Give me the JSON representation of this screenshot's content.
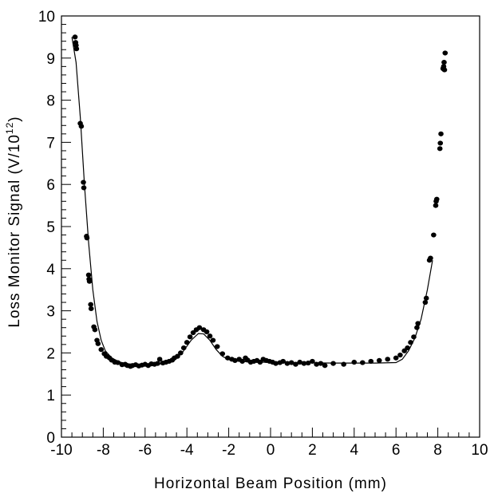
{
  "chart_data": {
    "type": "scatter",
    "title": "",
    "xlabel": "Horizontal Beam Position (mm)",
    "ylabel": "Loss Monitor Signal (V/10",
    "ylabel_superscript": "12",
    "ylabel_suffix": ")",
    "xlim": [
      -10,
      10
    ],
    "ylim": [
      0,
      10
    ],
    "x_ticks": [
      "-10",
      "-8",
      "-6",
      "-4",
      "-2",
      "0",
      "2",
      "4",
      "6",
      "8",
      "10"
    ],
    "y_ticks": [
      "0",
      "1",
      "2",
      "3",
      "4",
      "5",
      "6",
      "7",
      "8",
      "9",
      "10"
    ],
    "grid": false,
    "series": [
      {
        "kind": "points",
        "color": "#000000",
        "points": [
          [
            -9.35,
            9.5
          ],
          [
            -9.3,
            9.3
          ],
          [
            -9.28,
            9.22
          ],
          [
            -9.32,
            9.37
          ],
          [
            -9.1,
            7.45
          ],
          [
            -9.05,
            7.38
          ],
          [
            -8.95,
            6.05
          ],
          [
            -8.93,
            5.92
          ],
          [
            -8.8,
            4.77
          ],
          [
            -8.78,
            4.73
          ],
          [
            -8.7,
            3.85
          ],
          [
            -8.68,
            3.75
          ],
          [
            -8.66,
            3.7
          ],
          [
            -8.6,
            3.15
          ],
          [
            -8.58,
            3.05
          ],
          [
            -8.45,
            2.62
          ],
          [
            -8.4,
            2.55
          ],
          [
            -8.3,
            2.3
          ],
          [
            -8.25,
            2.22
          ],
          [
            -8.1,
            2.08
          ],
          [
            -7.95,
            1.98
          ],
          [
            -7.85,
            1.92
          ],
          [
            -7.7,
            1.88
          ],
          [
            -7.6,
            1.83
          ],
          [
            -7.45,
            1.78
          ],
          [
            -7.3,
            1.77
          ],
          [
            -7.1,
            1.72
          ],
          [
            -6.95,
            1.73
          ],
          [
            -6.85,
            1.7
          ],
          [
            -6.7,
            1.68
          ],
          [
            -6.6,
            1.7
          ],
          [
            -6.45,
            1.72
          ],
          [
            -6.3,
            1.69
          ],
          [
            -6.15,
            1.71
          ],
          [
            -6.0,
            1.73
          ],
          [
            -5.85,
            1.7
          ],
          [
            -5.7,
            1.74
          ],
          [
            -5.55,
            1.73
          ],
          [
            -5.4,
            1.75
          ],
          [
            -5.3,
            1.85
          ],
          [
            -5.15,
            1.76
          ],
          [
            -5.0,
            1.78
          ],
          [
            -4.85,
            1.8
          ],
          [
            -4.7,
            1.83
          ],
          [
            -4.6,
            1.88
          ],
          [
            -4.45,
            1.92
          ],
          [
            -4.3,
            2.0
          ],
          [
            -4.15,
            2.12
          ],
          [
            -4.0,
            2.25
          ],
          [
            -3.85,
            2.38
          ],
          [
            -3.7,
            2.48
          ],
          [
            -3.55,
            2.55
          ],
          [
            -3.4,
            2.6
          ],
          [
            -3.2,
            2.55
          ],
          [
            -3.05,
            2.5
          ],
          [
            -2.9,
            2.4
          ],
          [
            -2.75,
            2.3
          ],
          [
            -2.55,
            2.15
          ],
          [
            -2.3,
            1.98
          ],
          [
            -2.05,
            1.88
          ],
          [
            -1.85,
            1.85
          ],
          [
            -1.7,
            1.82
          ],
          [
            -1.5,
            1.85
          ],
          [
            -1.35,
            1.8
          ],
          [
            -1.2,
            1.88
          ],
          [
            -1.1,
            1.83
          ],
          [
            -0.95,
            1.78
          ],
          [
            -0.8,
            1.8
          ],
          [
            -0.65,
            1.82
          ],
          [
            -0.5,
            1.78
          ],
          [
            -0.35,
            1.85
          ],
          [
            -0.2,
            1.82
          ],
          [
            -0.05,
            1.8
          ],
          [
            0.1,
            1.78
          ],
          [
            0.25,
            1.75
          ],
          [
            0.45,
            1.77
          ],
          [
            0.6,
            1.8
          ],
          [
            0.8,
            1.75
          ],
          [
            1.0,
            1.77
          ],
          [
            1.2,
            1.73
          ],
          [
            1.4,
            1.78
          ],
          [
            1.6,
            1.75
          ],
          [
            1.8,
            1.76
          ],
          [
            2.0,
            1.8
          ],
          [
            2.2,
            1.73
          ],
          [
            2.4,
            1.75
          ],
          [
            2.6,
            1.7
          ],
          [
            3.0,
            1.75
          ],
          [
            3.5,
            1.73
          ],
          [
            4.0,
            1.78
          ],
          [
            4.4,
            1.77
          ],
          [
            4.8,
            1.8
          ],
          [
            5.2,
            1.82
          ],
          [
            5.6,
            1.85
          ],
          [
            6.0,
            1.88
          ],
          [
            6.2,
            1.95
          ],
          [
            6.4,
            2.05
          ],
          [
            6.55,
            2.12
          ],
          [
            6.7,
            2.25
          ],
          [
            6.85,
            2.38
          ],
          [
            7.0,
            2.6
          ],
          [
            7.05,
            2.7
          ],
          [
            7.4,
            3.2
          ],
          [
            7.45,
            3.3
          ],
          [
            7.6,
            4.2
          ],
          [
            7.65,
            4.25
          ],
          [
            7.8,
            4.8
          ],
          [
            7.9,
            5.5
          ],
          [
            7.92,
            5.6
          ],
          [
            7.95,
            5.65
          ],
          [
            8.1,
            6.85
          ],
          [
            8.12,
            6.98
          ],
          [
            8.15,
            7.2
          ],
          [
            8.25,
            8.75
          ],
          [
            8.28,
            8.8
          ],
          [
            8.3,
            8.9
          ],
          [
            8.32,
            8.72
          ],
          [
            8.35,
            9.12
          ]
        ]
      },
      {
        "kind": "fit-curve",
        "color": "#000000",
        "points": [
          [
            -9.5,
            9.5
          ],
          [
            -9.3,
            8.9
          ],
          [
            -9.1,
            7.6
          ],
          [
            -8.9,
            6.0
          ],
          [
            -8.7,
            4.6
          ],
          [
            -8.5,
            3.5
          ],
          [
            -8.3,
            2.75
          ],
          [
            -8.1,
            2.3
          ],
          [
            -7.9,
            2.05
          ],
          [
            -7.6,
            1.88
          ],
          [
            -7.2,
            1.78
          ],
          [
            -6.8,
            1.74
          ],
          [
            -6.2,
            1.72
          ],
          [
            -5.6,
            1.73
          ],
          [
            -5.0,
            1.76
          ],
          [
            -4.6,
            1.82
          ],
          [
            -4.2,
            2.02
          ],
          [
            -3.8,
            2.3
          ],
          [
            -3.45,
            2.46
          ],
          [
            -3.2,
            2.45
          ],
          [
            -2.9,
            2.3
          ],
          [
            -2.6,
            2.08
          ],
          [
            -2.3,
            1.92
          ],
          [
            -2.0,
            1.84
          ],
          [
            -1.5,
            1.8
          ],
          [
            -0.5,
            1.78
          ],
          [
            1.0,
            1.77
          ],
          [
            3.0,
            1.76
          ],
          [
            5.0,
            1.76
          ],
          [
            6.0,
            1.77
          ],
          [
            6.3,
            1.85
          ],
          [
            6.6,
            2.05
          ],
          [
            6.9,
            2.35
          ],
          [
            7.2,
            2.8
          ],
          [
            7.5,
            3.5
          ],
          [
            7.75,
            4.2
          ]
        ]
      }
    ]
  }
}
